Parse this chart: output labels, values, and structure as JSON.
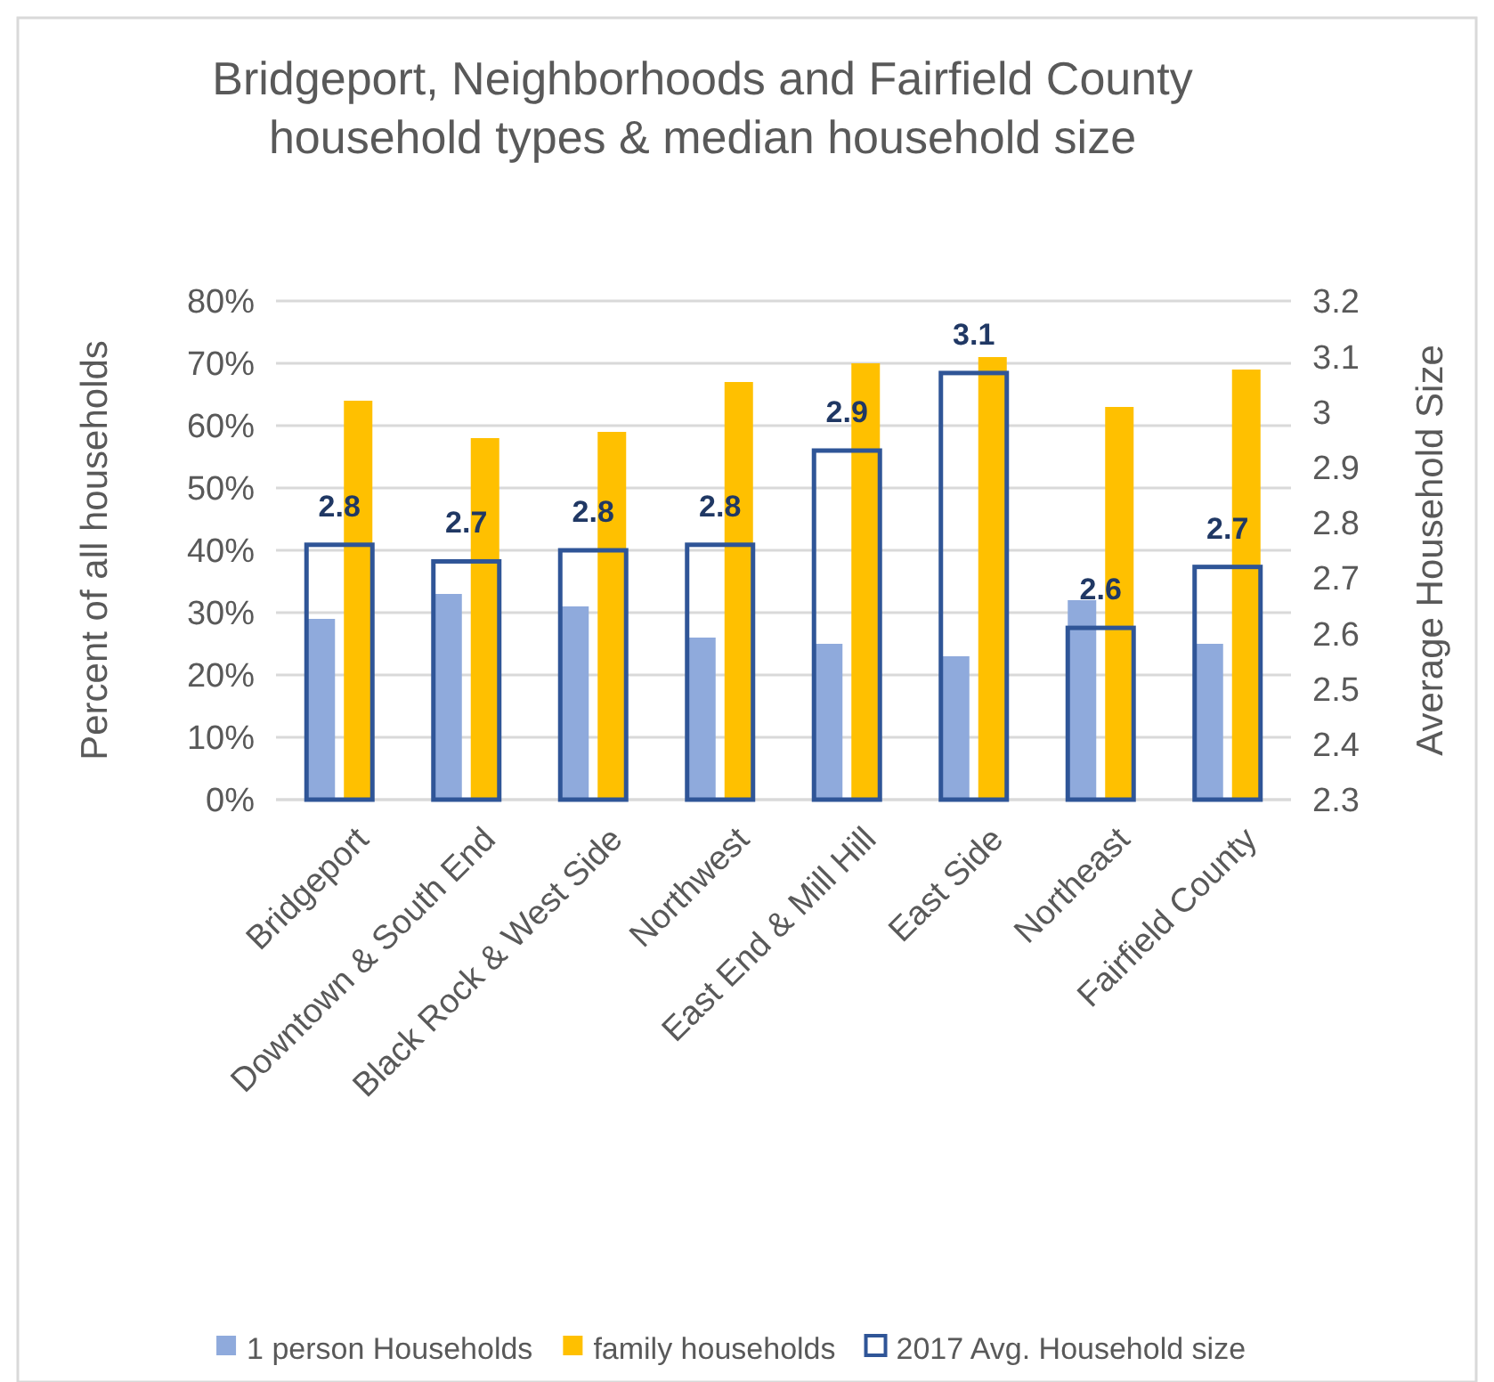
{
  "chart_data": {
    "type": "bar",
    "title": "Bridgeport, Neighborhoods and Fairfield County household types & median household size",
    "ylabel": "Percent of all households",
    "y2label": "Average Household Size",
    "categories": [
      "Bridgeport",
      "Downtown & South End",
      "Black Rock & West Side",
      "Northwest",
      "East End & Mill Hill",
      "East Side",
      "Northeast",
      "Fairfield County"
    ],
    "series": [
      {
        "name": "1 person Households",
        "color": "#8faadc",
        "values": [
          29,
          33,
          31,
          26,
          25,
          23,
          32,
          25
        ]
      },
      {
        "name": "family households",
        "color": "#ffc000",
        "values": [
          64,
          58,
          59,
          67,
          70,
          71,
          63,
          69
        ]
      },
      {
        "name": "2017 Avg. Household size",
        "color": "#2f5597",
        "axis": "y2",
        "values": [
          2.76,
          2.73,
          2.75,
          2.76,
          2.93,
          3.07,
          2.61,
          2.72
        ],
        "value_labels": [
          "2.8",
          "2.7",
          "2.8",
          "2.8",
          "2.9",
          "3.1",
          "2.6",
          "2.7"
        ]
      }
    ],
    "ylim": [
      0,
      80
    ],
    "yticks": [
      {
        "value": 0,
        "label": "0%"
      },
      {
        "value": 10,
        "label": "10%"
      },
      {
        "value": 20,
        "label": "20%"
      },
      {
        "value": 30,
        "label": "30%"
      },
      {
        "value": 40,
        "label": "40%"
      },
      {
        "value": 50,
        "label": "50%"
      },
      {
        "value": 60,
        "label": "60%"
      },
      {
        "value": 70,
        "label": "70%"
      },
      {
        "value": 80,
        "label": "80%"
      }
    ],
    "y2lim": [
      2.3,
      3.2
    ],
    "y2ticks": [
      2.3,
      2.4,
      2.5,
      2.6,
      2.7,
      2.8,
      2.9,
      3,
      3.1,
      3.2
    ],
    "grid": "y",
    "legend": "bottom"
  }
}
